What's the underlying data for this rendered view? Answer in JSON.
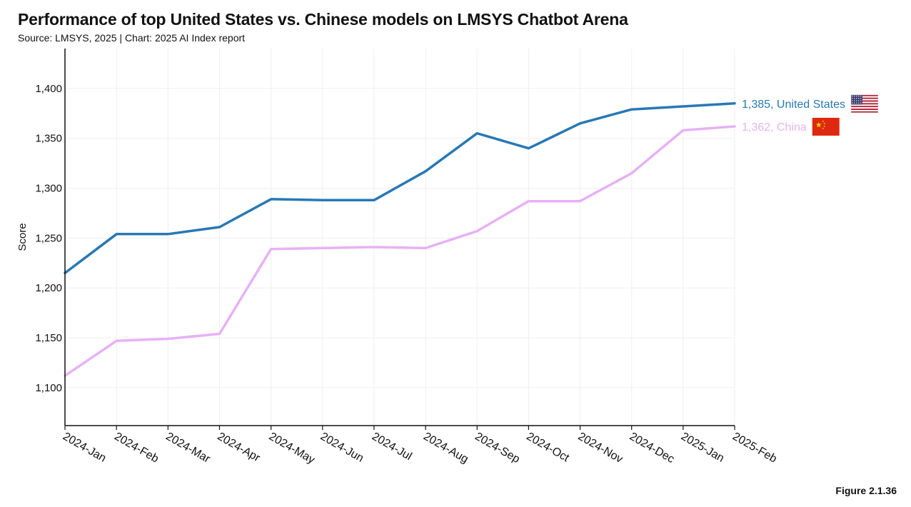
{
  "header": {
    "title": "Performance of top United States vs. Chinese models on LMSYS Chatbot Arena",
    "subtitle": "Source: LMSYS, 2025 | Chart: 2025 AI Index report"
  },
  "footer": {
    "figure": "Figure 2.1.36"
  },
  "chart_data": {
    "type": "line",
    "title": "Performance of top United States vs. Chinese models on LMSYS Chatbot Arena",
    "xlabel": "",
    "ylabel": "Score",
    "ylim": [
      1062,
      1440
    ],
    "yticks": [
      1100,
      1150,
      1200,
      1250,
      1300,
      1350,
      1400
    ],
    "ytick_labels": [
      "1,100",
      "1,150",
      "1,200",
      "1,250",
      "1,300",
      "1,350",
      "1,400"
    ],
    "grid": true,
    "categories": [
      "2024-Jan",
      "2024-Feb",
      "2024-Mar",
      "2024-Apr",
      "2024-May",
      "2024-Jun",
      "2024-Jul",
      "2024-Aug",
      "2024-Sep",
      "2024-Oct",
      "2024-Nov",
      "2024-Dec",
      "2025-Jan",
      "2025-Feb"
    ],
    "series": [
      {
        "name": "United States",
        "color": "#2878b5",
        "end_label": "1,385, United States",
        "flag_icon": "us-flag-icon",
        "values": [
          1215,
          1254,
          1254,
          1261,
          1289,
          1288,
          1288,
          1317,
          1355,
          1340,
          1365,
          1379,
          1382,
          1385
        ]
      },
      {
        "name": "China",
        "color": "#e7b1f5",
        "end_label": "1,362, China",
        "flag_icon": "china-flag-icon",
        "values": [
          1112,
          1147,
          1149,
          1154,
          1239,
          1240,
          1241,
          1240,
          1257,
          1287,
          1287,
          1315,
          1358,
          1362
        ]
      }
    ]
  }
}
